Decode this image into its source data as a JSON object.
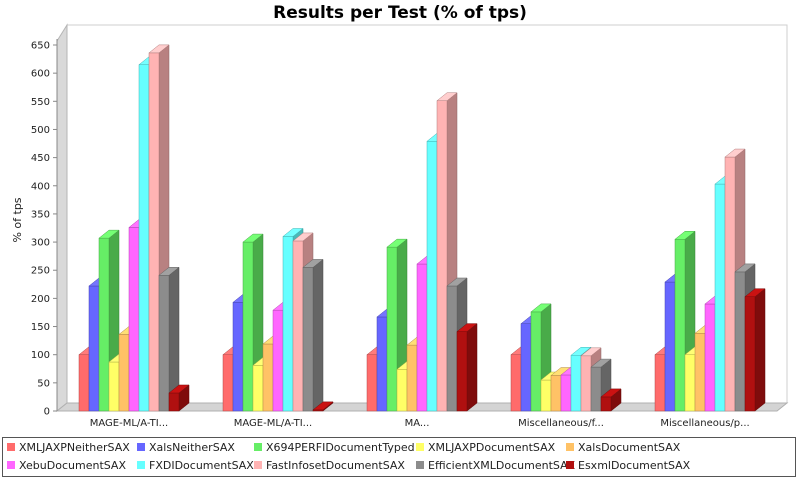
{
  "chart_data": {
    "type": "bar",
    "title": "Results per Test (% of tps)",
    "ylabel": "% of tps",
    "xlabel": "",
    "ylim": [
      0,
      650
    ],
    "yticks": [
      0,
      50,
      100,
      150,
      200,
      250,
      300,
      350,
      400,
      450,
      500,
      550,
      600,
      650
    ],
    "grid": false,
    "legend_position": "bottom",
    "categories": [
      "MAGE-ML/A-TI...",
      "MAGE-ML/A-TI...",
      "MA...",
      "Miscellaneous/f...",
      "Miscellaneous/p..."
    ],
    "series": [
      {
        "name": "XMLJAXPNeitherSAX",
        "color": "#ff6b6b",
        "values": [
          100,
          100,
          100,
          100,
          100
        ]
      },
      {
        "name": "XalsNeitherSAX",
        "color": "#6666ff",
        "values": [
          222,
          193,
          167,
          155,
          229
        ]
      },
      {
        "name": "X694PERFIDocumentTyped",
        "color": "#66ee66",
        "values": [
          307,
          300,
          291,
          176,
          305
        ]
      },
      {
        "name": "XMLJAXPDocumentSAX",
        "color": "#ffff66",
        "values": [
          87,
          81,
          74,
          55,
          100
        ]
      },
      {
        "name": "XalsDocumentSAX",
        "color": "#ffc266",
        "values": [
          136,
          119,
          117,
          63,
          138
        ]
      },
      {
        "name": "XebuDocumentSAX",
        "color": "#ff66ff",
        "values": [
          326,
          179,
          261,
          64,
          190
        ]
      },
      {
        "name": "FXDIDocumentSAX",
        "color": "#66ffff",
        "values": [
          615,
          310,
          479,
          99,
          403
        ]
      },
      {
        "name": "FastInfosetDocumentSAX",
        "color": "#ffb3b3",
        "values": [
          636,
          302,
          551,
          98,
          451
        ]
      },
      {
        "name": "EfficientXMLDocumentSAX",
        "color": "#8c8c8c",
        "values": [
          241,
          255,
          222,
          78,
          247
        ]
      },
      {
        "name": "EsxmlDocumentSAX",
        "color": "#b01010",
        "values": [
          32,
          2,
          141,
          25,
          203
        ]
      }
    ]
  }
}
